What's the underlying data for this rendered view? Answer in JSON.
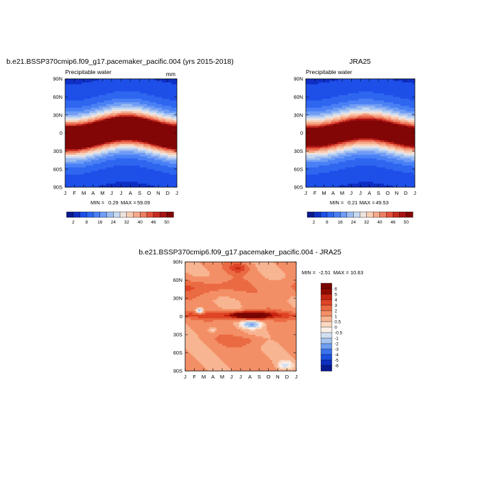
{
  "chart_data": [
    {
      "type": "heatmap",
      "title": "b.e21.BSSP370cmip6.f09_g17.pacemaker_pacific.004 (yrs 2015-2018)",
      "left_label": "Precipitable water",
      "units": "mm",
      "x_ticks": [
        "J",
        "F",
        "M",
        "A",
        "M",
        "J",
        "J",
        "A",
        "S",
        "O",
        "N",
        "D",
        "J"
      ],
      "y_ticks": [
        "90N",
        "60N",
        "30N",
        "0",
        "30S",
        "60S",
        "90S"
      ],
      "y_range": [
        -90,
        90
      ],
      "min_label": "MIN =",
      "min": "0.29",
      "max_label": "MAX =",
      "max": "59.09",
      "field": {
        "eq_peak": 55,
        "peak_shift_deg": 8,
        "pole_low": 2
      },
      "colorbar": {
        "levels": [
          2,
          4,
          8,
          12,
          16,
          20,
          24,
          28,
          32,
          36,
          40,
          44,
          46,
          48,
          50
        ],
        "labels": [
          "2",
          "8",
          "16",
          "24",
          "32",
          "40",
          "46",
          "50"
        ],
        "colors": [
          "#0a1a8c",
          "#0f2fc4",
          "#1e4fe8",
          "#2f66f0",
          "#4a80f5",
          "#6f9cf5",
          "#9dbcf0",
          "#c8d9f2",
          "#efe3de",
          "#f9cdb5",
          "#f6a98a",
          "#ee7f63",
          "#e2513b",
          "#c72a1e",
          "#a81212",
          "#820606"
        ]
      }
    },
    {
      "type": "heatmap",
      "title": "JRA25",
      "left_label": "Precipitable water",
      "units": "",
      "x_ticks": [
        "J",
        "F",
        "M",
        "A",
        "M",
        "J",
        "J",
        "A",
        "S",
        "O",
        "N",
        "D",
        "J"
      ],
      "y_ticks": [
        "90N",
        "60N",
        "30N",
        "0",
        "30S",
        "60S",
        "90S"
      ],
      "y_range": [
        -90,
        90
      ],
      "min_label": "MIN =",
      "min": "0.21",
      "max_label": "MAX =",
      "max": "49.53",
      "field": {
        "eq_peak": 47,
        "peak_shift_deg": 7,
        "pole_low": 2
      },
      "colorbar": {
        "levels": [
          2,
          4,
          8,
          12,
          16,
          20,
          24,
          28,
          32,
          36,
          40,
          44,
          46,
          48,
          50
        ],
        "labels": [
          "2",
          "8",
          "16",
          "24",
          "32",
          "40",
          "46",
          "50"
        ],
        "colors": [
          "#0a1a8c",
          "#0f2fc4",
          "#1e4fe8",
          "#2f66f0",
          "#4a80f5",
          "#6f9cf5",
          "#9dbcf0",
          "#c8d9f2",
          "#efe3de",
          "#f9cdb5",
          "#f6a98a",
          "#ee7f63",
          "#e2513b",
          "#c72a1e",
          "#a81212",
          "#820606"
        ]
      }
    },
    {
      "type": "heatmap",
      "title": "b.e21.BSSP370cmip6.f09_g17.pacemaker_pacific.004 - JRA25",
      "left_label": "",
      "units": "",
      "x_ticks": [
        "J",
        "F",
        "M",
        "A",
        "M",
        "J",
        "J",
        "A",
        "S",
        "O",
        "N",
        "D",
        "J"
      ],
      "y_ticks": [
        "90N",
        "60N",
        "30N",
        "0",
        "30S",
        "60S",
        "90S"
      ],
      "y_range": [
        -90,
        90
      ],
      "min_label": "MIN =",
      "min": "-2.51",
      "max_label": "MAX =",
      "max": "10.63",
      "colorbar": {
        "levels": [
          -6,
          -5,
          -4,
          -3,
          -2,
          -1,
          -0.5,
          0,
          0.5,
          1,
          2,
          3,
          4,
          5,
          6
        ],
        "labels": [
          "6",
          "5",
          "4",
          "3",
          "2",
          "1",
          "0.5",
          "0",
          "-0.5",
          "-1",
          "-2",
          "-3",
          "-4",
          "-5",
          "-6"
        ],
        "colors": [
          "#081a8e",
          "#0c2fc0",
          "#1c4fe0",
          "#3a72ee",
          "#6e9ef0",
          "#a4c3ee",
          "#d3e0f2",
          "#fbf0e8",
          "#fbd8c2",
          "#f8b592",
          "#f38f66",
          "#ea6a43",
          "#de4425",
          "#c52410",
          "#8e0b02",
          "#780400"
        ]
      }
    }
  ]
}
